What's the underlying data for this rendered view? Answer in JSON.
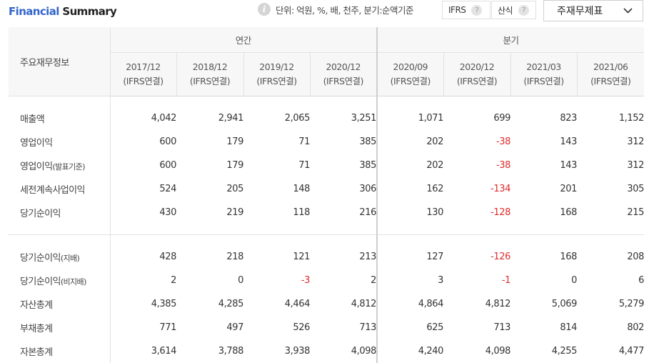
{
  "header": {
    "title_part1": "Financial",
    "title_part2": "Summary",
    "unit_text": "단위: 억원, %, 배, 천주, 분기:순액기준",
    "ifrs_label": "IFRS",
    "calc_label": "산식",
    "help_glyph": "?",
    "info_glyph": "i",
    "dropdown_label": "주재무제표"
  },
  "table": {
    "label_header": "주요재무정보",
    "annual_group": "연간",
    "quarter_group": "분기",
    "columns": [
      {
        "period": "2017/12",
        "basis": "(IFRS연결)"
      },
      {
        "period": "2018/12",
        "basis": "(IFRS연결)"
      },
      {
        "period": "2019/12",
        "basis": "(IFRS연결)"
      },
      {
        "period": "2020/12",
        "basis": "(IFRS연결)"
      },
      {
        "period": "2020/09",
        "basis": "(IFRS연결)"
      },
      {
        "period": "2020/12",
        "basis": "(IFRS연결)"
      },
      {
        "period": "2021/03",
        "basis": "(IFRS연결)"
      },
      {
        "period": "2021/06",
        "basis": "(IFRS연결)"
      }
    ],
    "rows_top": [
      {
        "label": "매출액",
        "label_suffix": "",
        "values": [
          "4,042",
          "2,941",
          "2,065",
          "3,251",
          "1,071",
          "699",
          "823",
          "1,152"
        ]
      },
      {
        "label": "영업이익",
        "label_suffix": "",
        "values": [
          "600",
          "179",
          "71",
          "385",
          "202",
          "-38",
          "143",
          "312"
        ]
      },
      {
        "label": "영업이익",
        "label_suffix": "(발표기준)",
        "values": [
          "600",
          "179",
          "71",
          "385",
          "202",
          "-38",
          "143",
          "312"
        ]
      },
      {
        "label": "세전계속사업이익",
        "label_suffix": "",
        "values": [
          "524",
          "205",
          "148",
          "306",
          "162",
          "-134",
          "201",
          "305"
        ]
      },
      {
        "label": "당기순이익",
        "label_suffix": "",
        "values": [
          "430",
          "219",
          "118",
          "216",
          "130",
          "-128",
          "168",
          "215"
        ]
      }
    ],
    "rows_bottom": [
      {
        "label": "당기순이익",
        "label_suffix": "(지배)",
        "values": [
          "428",
          "218",
          "121",
          "213",
          "127",
          "-126",
          "168",
          "208"
        ]
      },
      {
        "label": "당기순이익",
        "label_suffix": "(비지배)",
        "values": [
          "2",
          "0",
          "-3",
          "2",
          "3",
          "-1",
          "0",
          "6"
        ]
      },
      {
        "label": "자산총계",
        "label_suffix": "",
        "values": [
          "4,385",
          "4,285",
          "4,464",
          "4,812",
          "4,864",
          "4,812",
          "5,069",
          "5,279"
        ]
      },
      {
        "label": "부채총계",
        "label_suffix": "",
        "values": [
          "771",
          "497",
          "526",
          "713",
          "625",
          "713",
          "814",
          "802"
        ]
      },
      {
        "label": "자본총계",
        "label_suffix": "",
        "values": [
          "3,614",
          "3,788",
          "3,938",
          "4,098",
          "4,240",
          "4,098",
          "4,255",
          "4,477"
        ]
      }
    ]
  },
  "colors": {
    "title_accent": "#3366cc",
    "negative": "#e12b2b",
    "header_bg": "#f7f7f7"
  }
}
